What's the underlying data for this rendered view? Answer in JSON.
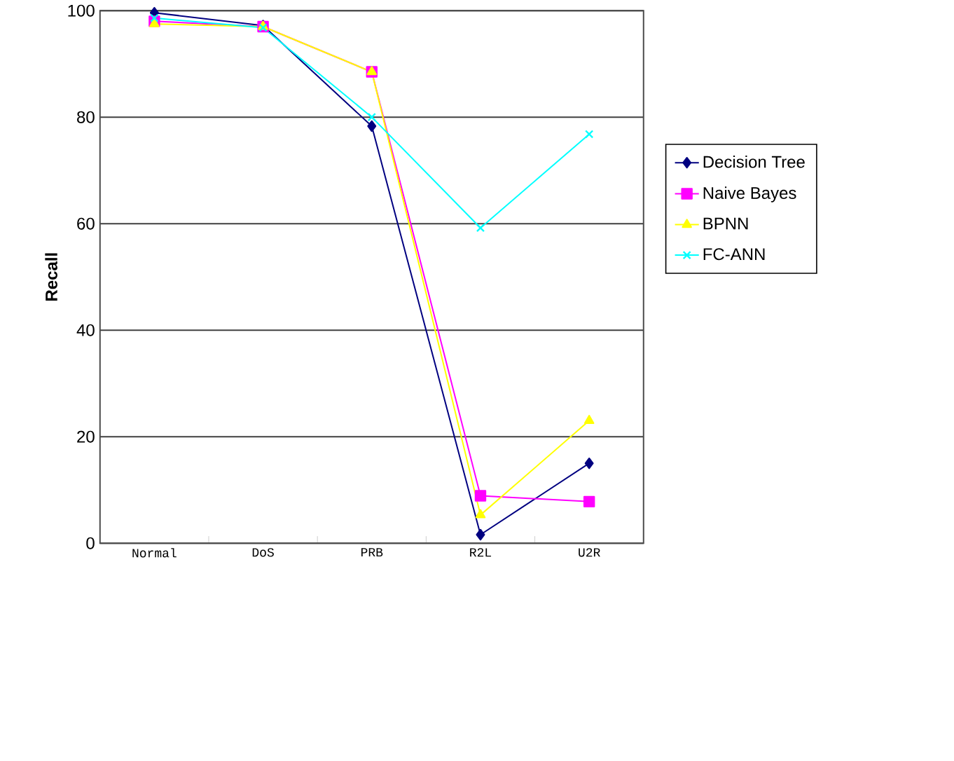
{
  "chart_data": {
    "type": "line",
    "ylabel": "Recall",
    "categories": [
      "Normal",
      "DoS",
      "PRB",
      "R2L",
      "U2R"
    ],
    "ylim": [
      0,
      100
    ],
    "yticks": [
      0,
      20,
      40,
      60,
      80,
      100
    ],
    "grid": "y",
    "legend": "right",
    "series": [
      {
        "name": "Decision Tree",
        "color": "#000080",
        "marker": "diamond",
        "values": [
          99.6,
          97.2,
          78.3,
          1.6,
          15
        ]
      },
      {
        "name": "Naive Bayes",
        "color": "#ff00ff",
        "marker": "square",
        "values": [
          98,
          97,
          88.5,
          8.9,
          7.8
        ]
      },
      {
        "name": "BPNN",
        "color": "#ffff00",
        "marker": "triangle",
        "values": [
          97.5,
          97,
          88.5,
          5.3,
          23
        ]
      },
      {
        "name": "FC-ANN",
        "color": "#00ffff",
        "marker": "cross",
        "values": [
          98.6,
          96.8,
          80,
          59.2,
          76.8
        ]
      }
    ]
  }
}
